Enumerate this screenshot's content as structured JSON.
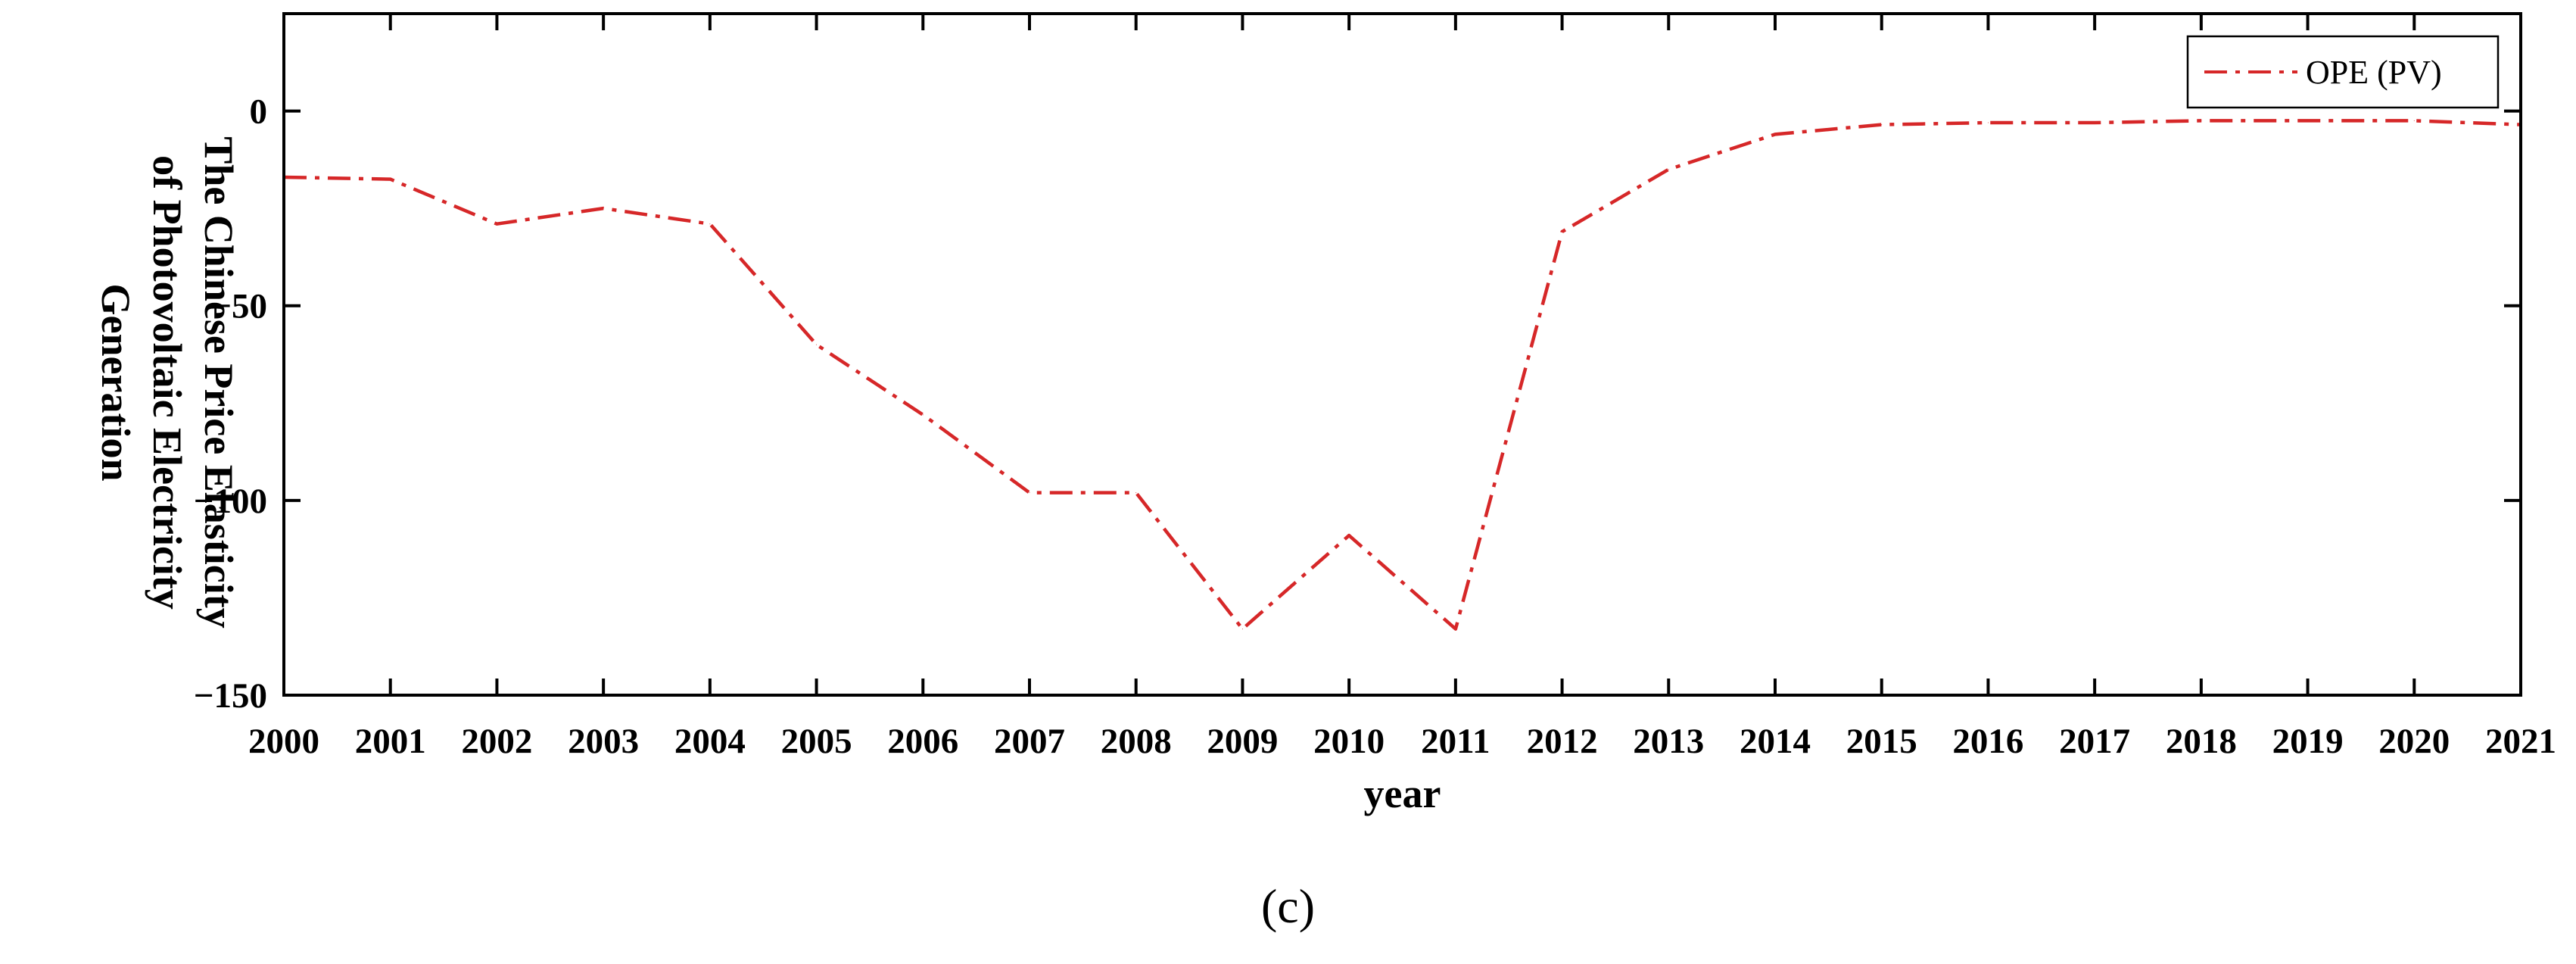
{
  "panel_label": "(c)",
  "chart_data": {
    "type": "line",
    "title": "",
    "xlabel": "year",
    "ylabel_lines": [
      "The Chinese Price Elasticity",
      "of Photovoltaic Electricity",
      "Generation"
    ],
    "x": [
      "2000",
      "2001",
      "2002",
      "2003",
      "2004",
      "2005",
      "2006",
      "2007",
      "2008",
      "2009",
      "2010",
      "2011",
      "2012",
      "2013",
      "2014",
      "2015",
      "2016",
      "2017",
      "2018",
      "2019",
      "2020",
      "2021"
    ],
    "yticks": [
      0,
      -50,
      -100,
      -150
    ],
    "ytick_labels": [
      "0",
      "−50",
      "−100",
      "−150"
    ],
    "ylim": [
      -150,
      25
    ],
    "series": [
      {
        "name": "OPE (PV)",
        "color": "#d62728",
        "line_style": "dash-dot",
        "values": [
          -17,
          -17.5,
          -29,
          -25,
          -29,
          -60,
          -78,
          -98,
          -98,
          -133,
          -109,
          -133,
          -31,
          -15,
          -6,
          -3.5,
          -3,
          -3,
          -2.5,
          -2.5,
          -2.5,
          -3.5
        ]
      }
    ],
    "legend_position": "top-right",
    "grid": false
  }
}
